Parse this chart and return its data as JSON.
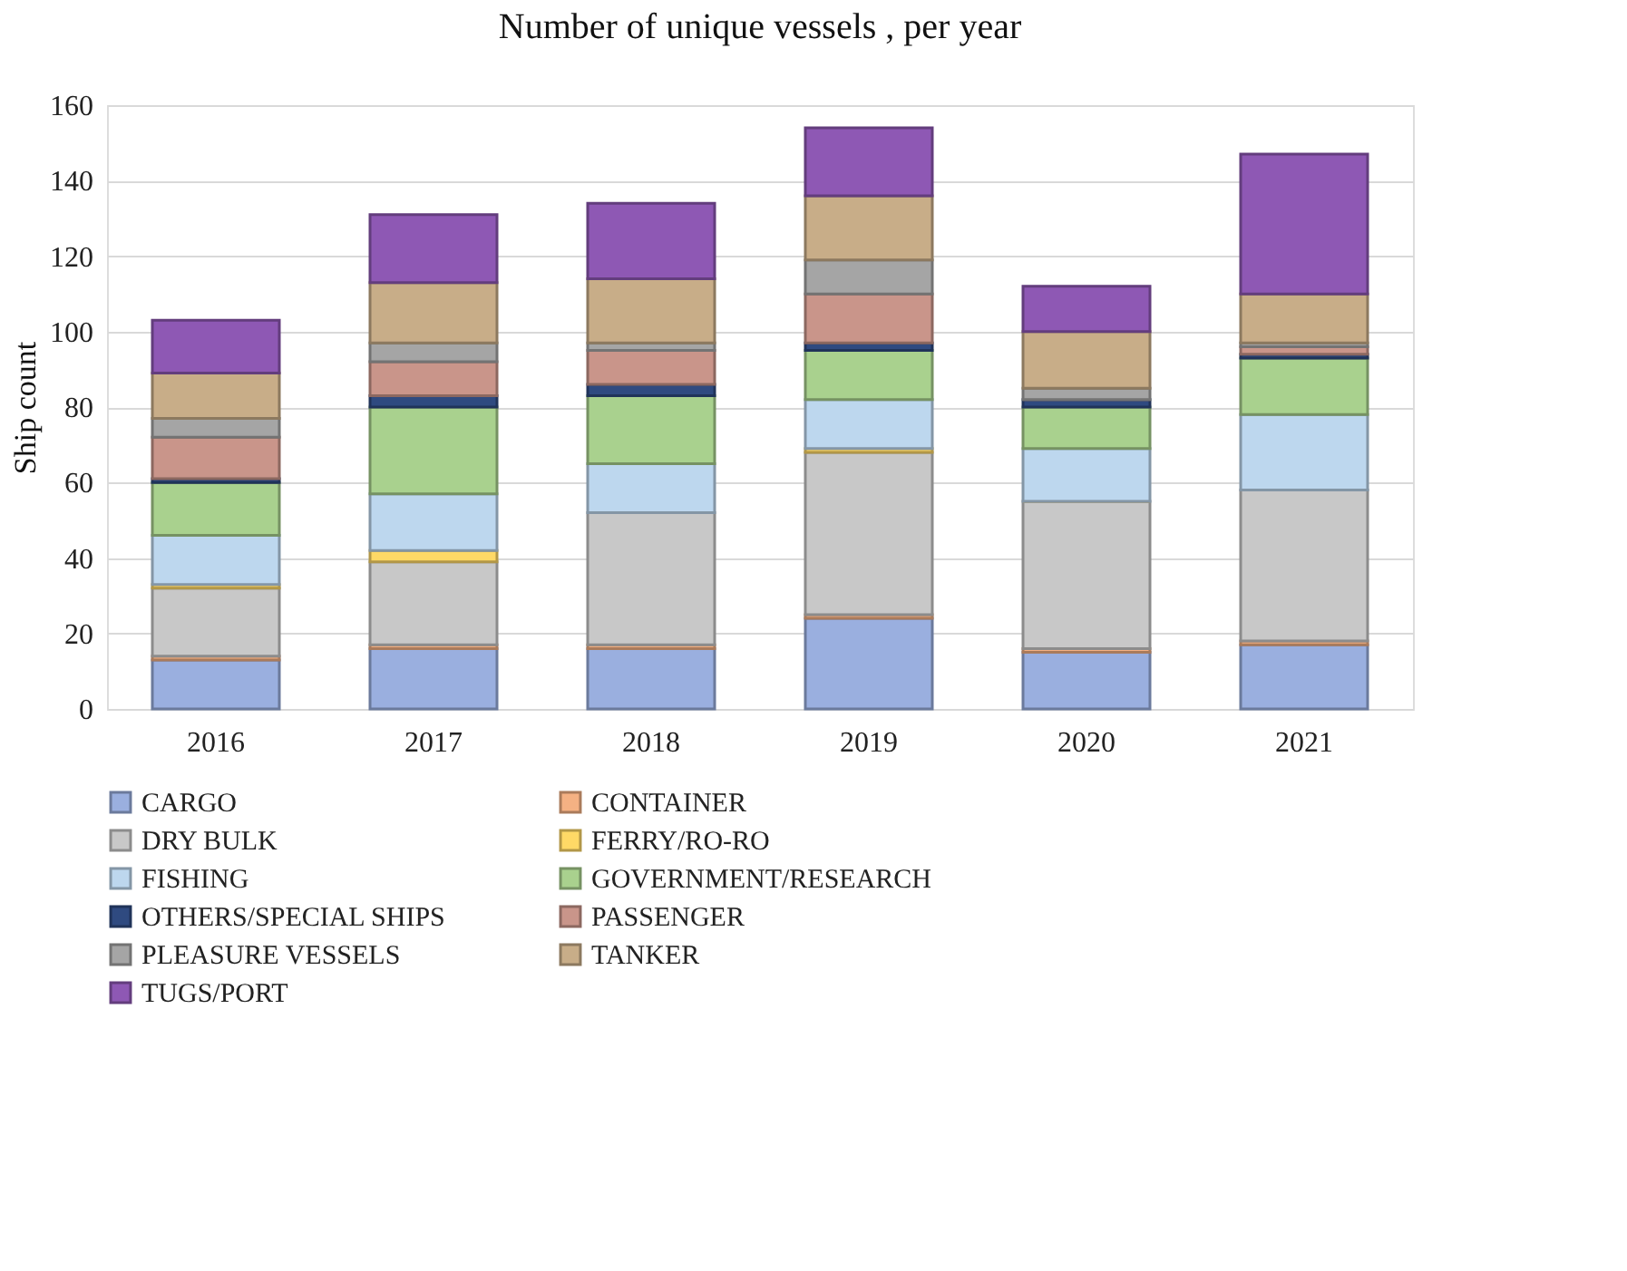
{
  "chart_data": {
    "type": "bar",
    "title": "Number of unique vessels , per year",
    "ylabel": "Ship count",
    "categories": [
      "2016",
      "2017",
      "2018",
      "2019",
      "2020",
      "2021"
    ],
    "stacked": true,
    "ylim": [
      0,
      160
    ],
    "yticks": [
      0,
      20,
      40,
      60,
      80,
      100,
      120,
      140,
      160
    ],
    "grid": "y",
    "legend": "bottom",
    "series": [
      {
        "name": "CARGO",
        "color": "#9aafdf",
        "values": [
          13,
          16,
          16,
          24,
          15,
          17
        ]
      },
      {
        "name": "CONTAINER",
        "color": "#f4b183",
        "values": [
          1,
          1,
          1,
          1,
          1,
          1
        ]
      },
      {
        "name": "DRY BULK",
        "color": "#c8c8c8",
        "values": [
          18,
          22,
          35,
          43,
          39,
          40
        ]
      },
      {
        "name": "FERRY/RO-RO",
        "color": "#ffd966",
        "values": [
          1,
          3,
          0,
          1,
          0,
          0
        ]
      },
      {
        "name": "FISHING",
        "color": "#bdd7ee",
        "values": [
          13,
          15,
          13,
          13,
          14,
          20
        ]
      },
      {
        "name": "GOVERNMENT/RESEARCH",
        "color": "#a9d18e",
        "values": [
          14,
          23,
          18,
          13,
          11,
          15
        ]
      },
      {
        "name": "OTHERS/SPECIAL SHIPS",
        "color": "#2f4a80",
        "values": [
          1,
          3,
          3,
          2,
          2,
          1
        ]
      },
      {
        "name": "PASSENGER",
        "color": "#c9958a",
        "values": [
          11,
          9,
          9,
          13,
          0,
          2
        ]
      },
      {
        "name": "PLEASURE VESSELS",
        "color": "#a5a5a5",
        "values": [
          5,
          5,
          2,
          9,
          3,
          1
        ]
      },
      {
        "name": "TANKER",
        "color": "#c8ad88",
        "values": [
          12,
          16,
          17,
          17,
          15,
          13
        ]
      },
      {
        "name": "TUGS/PORT",
        "color": "#8e58b4",
        "values": [
          14,
          18,
          20,
          18,
          12,
          37
        ]
      }
    ]
  }
}
